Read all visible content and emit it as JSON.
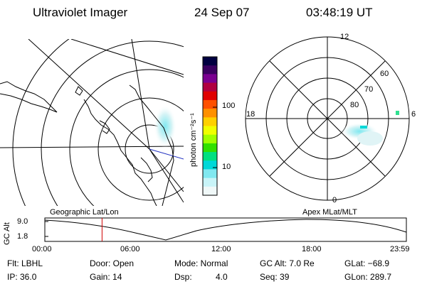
{
  "header": {
    "title": "Ultraviolet Imager",
    "date": "24 Sep 07",
    "time": "03:48:19 UT"
  },
  "colorbar": {
    "unit_label": "photon cm⁻²s⁻¹",
    "ticks": [
      "100",
      "10"
    ],
    "colors": [
      "#000040",
      "#3a0060",
      "#7a0090",
      "#b00040",
      "#e00000",
      "#ff5000",
      "#ff9000",
      "#ffd000",
      "#f0ff00",
      "#a0ff00",
      "#30e000",
      "#00e080",
      "#00d8d8",
      "#80e8f0",
      "#c8f4f8",
      "#f0f8f8"
    ]
  },
  "polar_plot": {
    "mlt_labels": [
      "12",
      "18",
      "6",
      "0"
    ],
    "lat_labels": [
      "60",
      "70",
      "80"
    ]
  },
  "timeline": {
    "left_label": "Geographic Lat/Lon",
    "right_label": "Apex MLat/MLT",
    "axis_title": "GC Alt",
    "y_ticks": [
      "9.0",
      "1.8"
    ],
    "x_ticks": [
      "00:00",
      "06:00",
      "12:00",
      "18:00",
      "23:59"
    ],
    "current_time_hours": 3.8
  },
  "status": {
    "flt": "Flt: LBHL",
    "ip": "IP: 36.0",
    "door": "Door: Open",
    "gain": "Gain: 14",
    "mode": "Mode: Normal",
    "dsp_label": "Dsp:",
    "dsp_value": "4.0",
    "gc_alt": "GC Alt: 7.0 Re",
    "seq": "Seq: 39",
    "glat": "GLat: −68.9",
    "glon": "GLon: 289.7"
  }
}
